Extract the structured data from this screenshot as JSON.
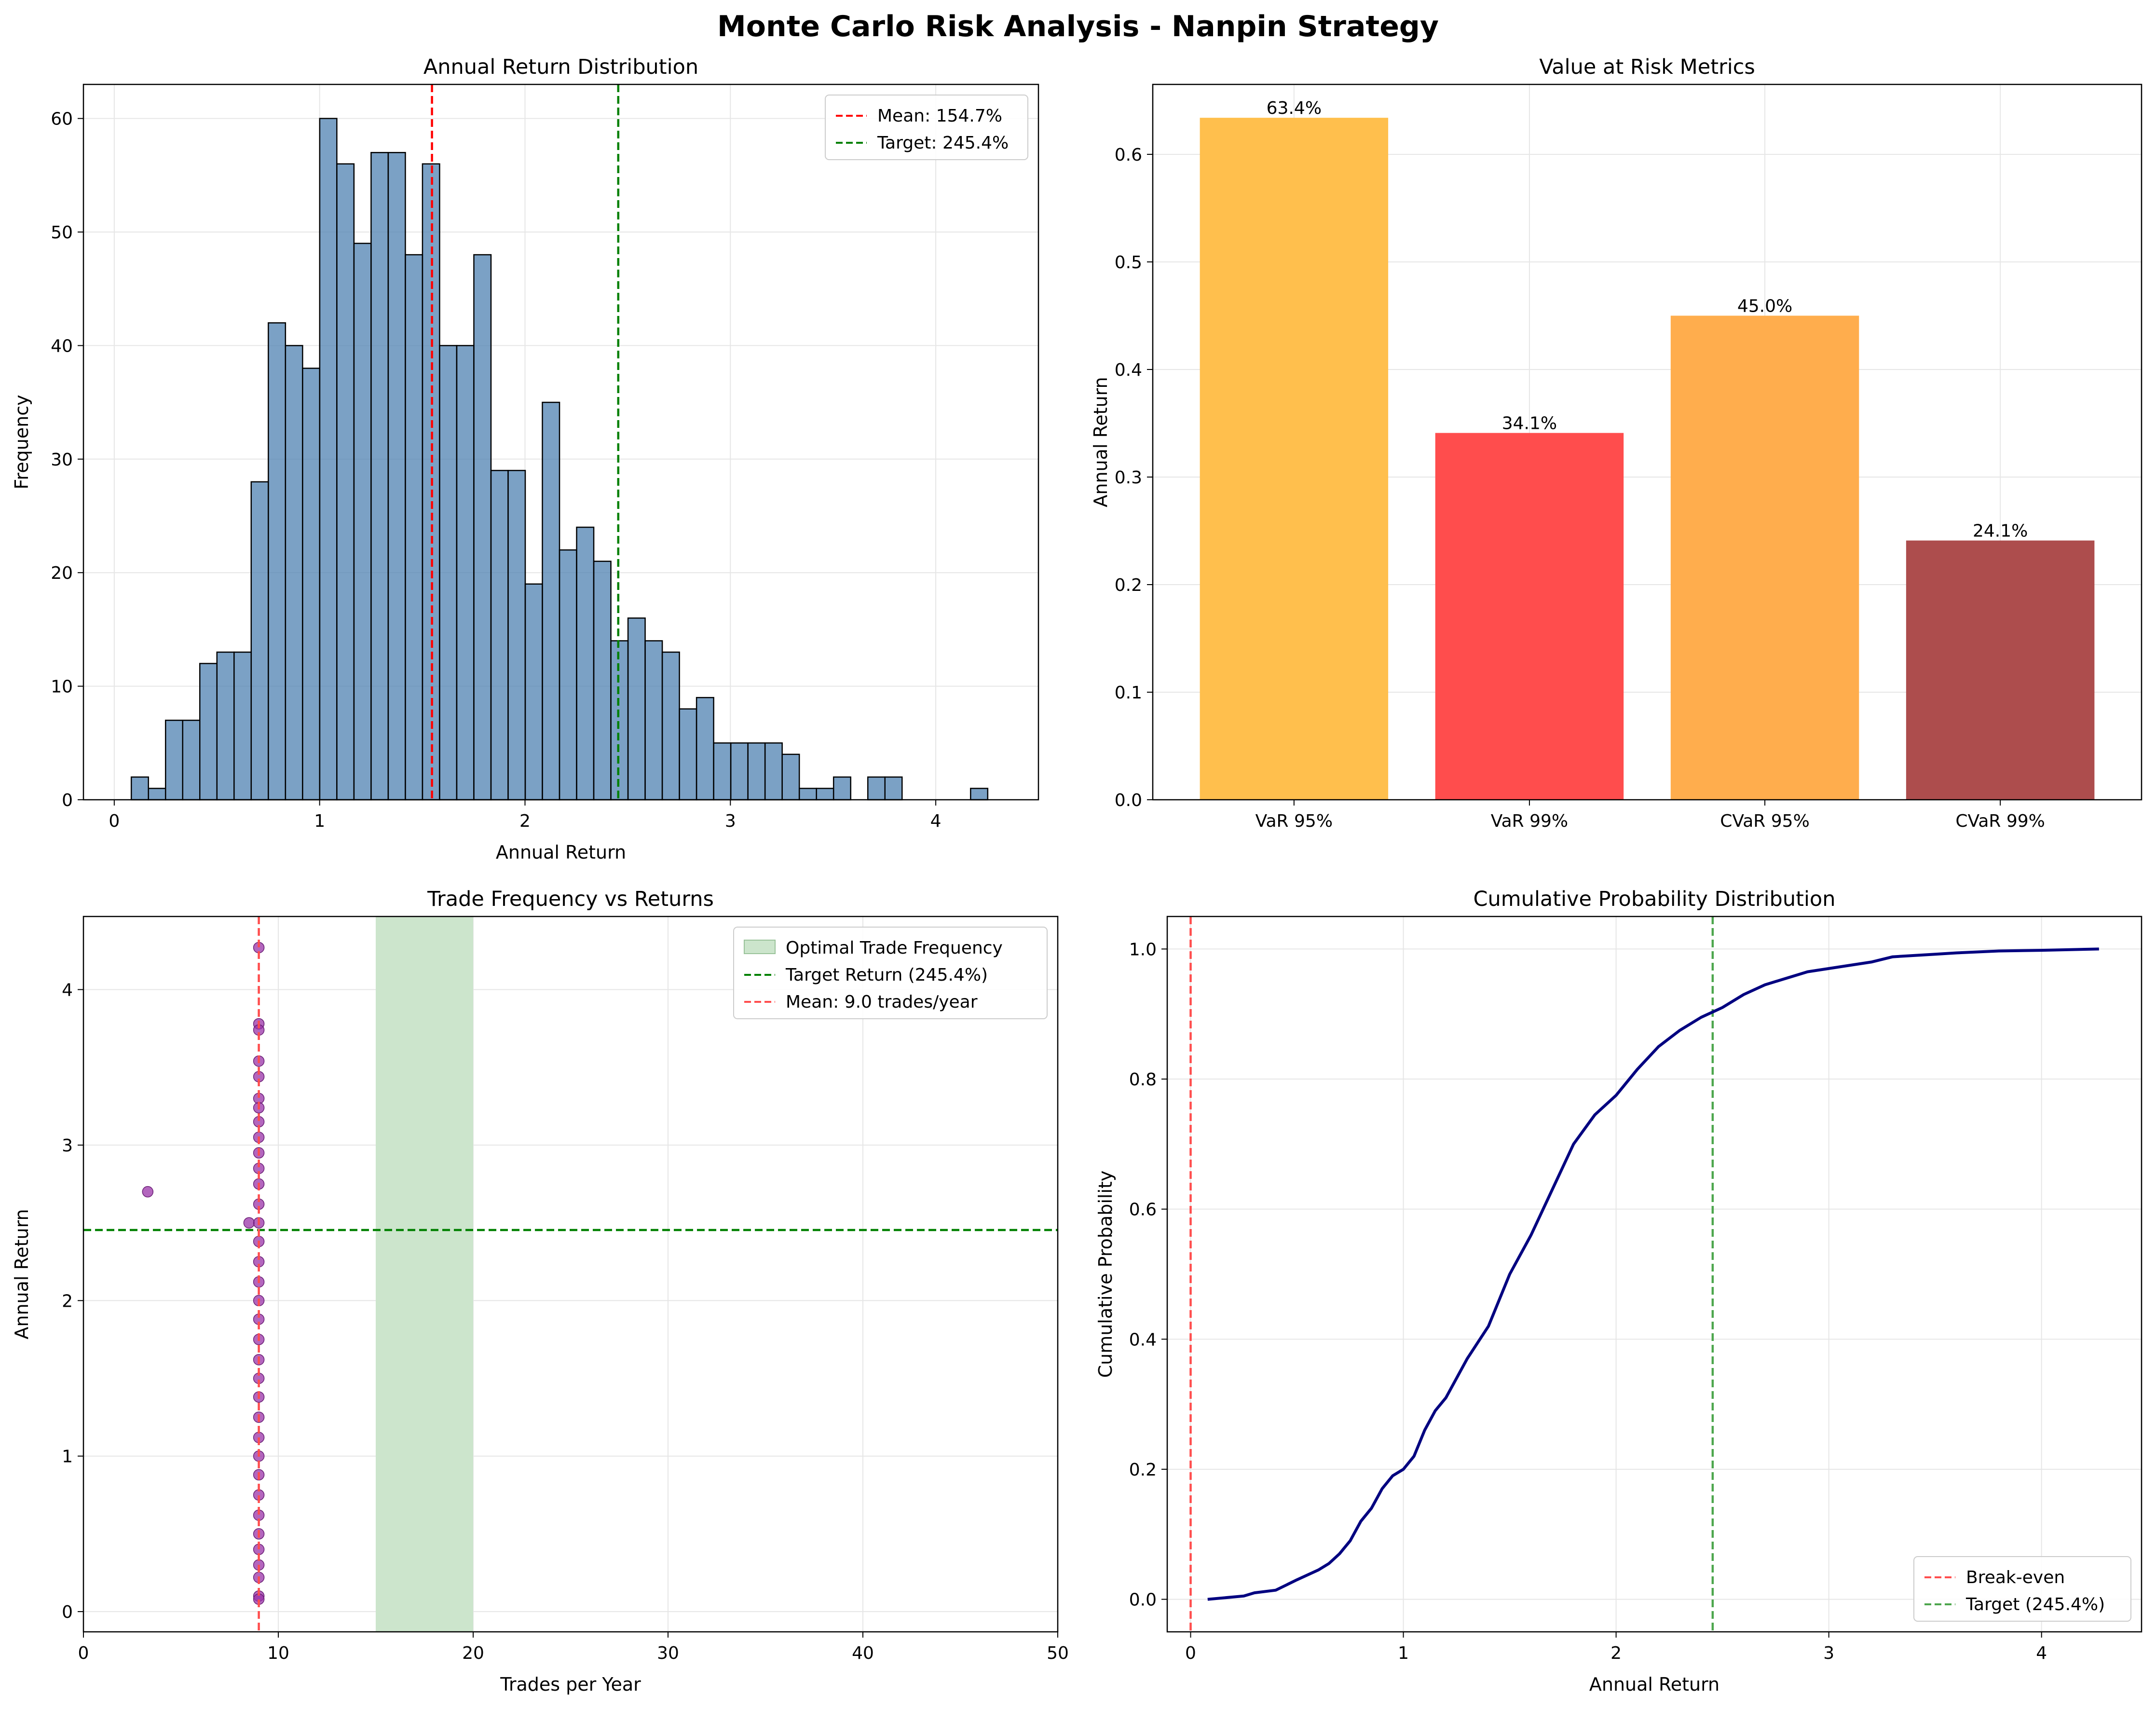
{
  "figure": {
    "title": "Monte Carlo Risk Analysis - Nanpin Strategy"
  },
  "chart_data": [
    {
      "type": "histogram",
      "title": "Annual Return Distribution",
      "xlabel": "Annual Return",
      "ylabel": "Frequency",
      "xlim": [
        -0.15,
        4.5
      ],
      "ylim": [
        0,
        63
      ],
      "xticks": [
        0,
        1,
        2,
        3,
        4
      ],
      "yticks": [
        0,
        10,
        20,
        30,
        40,
        50,
        60
      ],
      "grid": true,
      "legend_position": "top-right",
      "bar_color": "#4f81b2",
      "bin_start": 0.083,
      "bin_width": 0.0834,
      "counts": [
        2,
        1,
        7,
        7,
        12,
        13,
        13,
        28,
        42,
        40,
        38,
        60,
        56,
        49,
        57,
        57,
        48,
        56,
        40,
        40,
        48,
        29,
        29,
        19,
        35,
        22,
        24,
        21,
        14,
        16,
        14,
        13,
        8,
        9,
        5,
        5,
        5,
        5,
        4,
        1,
        1,
        2,
        0,
        2,
        2,
        0,
        0,
        0,
        0,
        1
      ],
      "reference_lines": [
        {
          "label": "Mean: 154.7%",
          "value": 1.547,
          "color": "#ff0000"
        },
        {
          "label": "Target: 245.4%",
          "value": 2.454,
          "color": "#008000"
        }
      ]
    },
    {
      "type": "bar",
      "title": "Value at Risk Metrics",
      "xlabel": "",
      "ylabel": "Annual Return",
      "ylim": [
        0,
        0.665
      ],
      "yticks": [
        0.0,
        0.1,
        0.2,
        0.3,
        0.4,
        0.5,
        0.6
      ],
      "ytick_labels": [
        "0.0",
        "0.1",
        "0.2",
        "0.3",
        "0.4",
        "0.5",
        "0.6"
      ],
      "grid": true,
      "categories": [
        "VaR 95%",
        "VaR 99%",
        "CVaR 95%",
        "CVaR 99%"
      ],
      "values": [
        0.634,
        0.341,
        0.45,
        0.241
      ],
      "value_labels": [
        "63.4%",
        "34.1%",
        "45.0%",
        "24.1%"
      ],
      "colors": [
        "#ffbf4d",
        "#ff4d4d",
        "#ffad4d",
        "#ad4d4d"
      ]
    },
    {
      "type": "scatter",
      "title": "Trade Frequency vs Returns",
      "xlabel": "Trades per Year",
      "ylabel": "Annual Return",
      "xlim": [
        0,
        50
      ],
      "ylim": [
        -0.13,
        4.47
      ],
      "xticks": [
        0,
        10,
        20,
        30,
        40,
        50
      ],
      "yticks": [
        0,
        1,
        2,
        3,
        4
      ],
      "grid": true,
      "legend_position": "top-right",
      "point_color": "#9933a8",
      "points": [
        {
          "x": 3.3,
          "y": 2.7
        },
        {
          "x": 8.5,
          "y": 2.5
        },
        {
          "x": 9.0,
          "y": 4.27
        },
        {
          "x": 9.0,
          "y": 3.78
        },
        {
          "x": 9.0,
          "y": 3.74
        },
        {
          "x": 9.0,
          "y": 3.54
        },
        {
          "x": 9.0,
          "y": 3.44
        },
        {
          "x": 9.0,
          "y": 3.3
        },
        {
          "x": 9.0,
          "y": 3.24
        },
        {
          "x": 9.0,
          "y": 3.15
        },
        {
          "x": 9.0,
          "y": 3.05
        },
        {
          "x": 9.0,
          "y": 2.95
        },
        {
          "x": 9.0,
          "y": 2.85
        },
        {
          "x": 9.0,
          "y": 2.75
        },
        {
          "x": 9.0,
          "y": 2.62
        },
        {
          "x": 9.0,
          "y": 2.5
        },
        {
          "x": 9.0,
          "y": 2.38
        },
        {
          "x": 9.0,
          "y": 2.25
        },
        {
          "x": 9.0,
          "y": 2.12
        },
        {
          "x": 9.0,
          "y": 2.0
        },
        {
          "x": 9.0,
          "y": 1.88
        },
        {
          "x": 9.0,
          "y": 1.75
        },
        {
          "x": 9.0,
          "y": 1.62
        },
        {
          "x": 9.0,
          "y": 1.5
        },
        {
          "x": 9.0,
          "y": 1.38
        },
        {
          "x": 9.0,
          "y": 1.25
        },
        {
          "x": 9.0,
          "y": 1.12
        },
        {
          "x": 9.0,
          "y": 1.0
        },
        {
          "x": 9.0,
          "y": 0.88
        },
        {
          "x": 9.0,
          "y": 0.75
        },
        {
          "x": 9.0,
          "y": 0.62
        },
        {
          "x": 9.0,
          "y": 0.5
        },
        {
          "x": 9.0,
          "y": 0.4
        },
        {
          "x": 9.0,
          "y": 0.3
        },
        {
          "x": 9.0,
          "y": 0.22
        },
        {
          "x": 9.0,
          "y": 0.1
        },
        {
          "x": 9.0,
          "y": 0.08
        }
      ],
      "span": {
        "label": "Optimal Trade Frequency",
        "x": [
          15,
          20
        ],
        "color": "#cce5cc"
      },
      "reference_lines": [
        {
          "label": "Target Return (245.4%)",
          "orientation": "horizontal",
          "value": 2.454,
          "color": "#008000"
        },
        {
          "label": "Mean: 9.0 trades/year",
          "orientation": "vertical",
          "value": 9.0,
          "color": "#ff4d4d"
        }
      ]
    },
    {
      "type": "line",
      "title": "Cumulative Probability Distribution",
      "xlabel": "Annual Return",
      "ylabel": "Cumulative Probability",
      "xlim": [
        -0.11,
        4.47
      ],
      "ylim": [
        -0.05,
        1.05
      ],
      "xticks": [
        0,
        1,
        2,
        3,
        4
      ],
      "yticks": [
        0.0,
        0.2,
        0.4,
        0.6,
        0.8,
        1.0
      ],
      "ytick_labels": [
        "0.0",
        "0.2",
        "0.4",
        "0.6",
        "0.8",
        "1.0"
      ],
      "grid": true,
      "legend_position": "bottom-right",
      "line_color": "#000080",
      "x": [
        0.08,
        0.25,
        0.3,
        0.4,
        0.45,
        0.5,
        0.6,
        0.65,
        0.7,
        0.75,
        0.8,
        0.85,
        0.9,
        0.95,
        1.0,
        1.05,
        1.1,
        1.15,
        1.2,
        1.3,
        1.4,
        1.5,
        1.6,
        1.7,
        1.8,
        1.9,
        2.0,
        2.1,
        2.2,
        2.3,
        2.4,
        2.5,
        2.6,
        2.7,
        2.8,
        2.9,
        3.0,
        3.1,
        3.2,
        3.3,
        3.5,
        3.6,
        3.8,
        4.0,
        4.27
      ],
      "y": [
        0.0,
        0.005,
        0.01,
        0.014,
        0.022,
        0.03,
        0.045,
        0.055,
        0.07,
        0.09,
        0.12,
        0.14,
        0.17,
        0.19,
        0.2,
        0.22,
        0.26,
        0.29,
        0.31,
        0.37,
        0.42,
        0.5,
        0.56,
        0.63,
        0.7,
        0.745,
        0.775,
        0.815,
        0.85,
        0.875,
        0.895,
        0.91,
        0.93,
        0.945,
        0.955,
        0.965,
        0.97,
        0.975,
        0.98,
        0.988,
        0.992,
        0.994,
        0.997,
        0.998,
        1.0
      ],
      "reference_lines": [
        {
          "label": "Break-even",
          "value": 0.0,
          "color": "#ff4d4d"
        },
        {
          "label": "Target (245.4%)",
          "value": 2.454,
          "color": "#4da64d"
        }
      ]
    }
  ]
}
